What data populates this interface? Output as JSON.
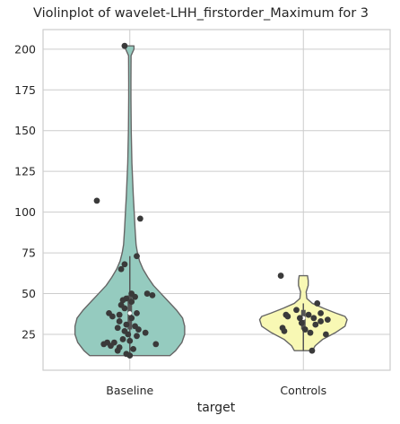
{
  "chart_data": {
    "type": "violin",
    "title": "Violinplot of wavelet-LHH_firstorder_Maximum for 3",
    "xlabel": "target",
    "ylabel": "",
    "categories": [
      "Baseline",
      "Controls"
    ],
    "ylim": [
      3,
      212
    ],
    "yticks": [
      25,
      50,
      75,
      100,
      125,
      150,
      175,
      200
    ],
    "ytick_labels": [
      "25",
      "50",
      "75",
      "100",
      "125",
      "150",
      "175",
      "200"
    ],
    "grid": true,
    "colors": {
      "Baseline": "#95cbbf",
      "Controls": "#f8f8b4",
      "outline": "#666666",
      "points": "#3a3a3a",
      "inner": "#555555"
    },
    "violins": [
      {
        "category": "Baseline",
        "min": 12,
        "max": 202,
        "q1": 28,
        "median": 38,
        "q3": 49,
        "whisker_low": 12,
        "whisker_high": 73,
        "profile": [
          [
            12,
            0.58
          ],
          [
            15,
            0.66
          ],
          [
            20,
            0.75
          ],
          [
            25,
            0.79
          ],
          [
            30,
            0.79
          ],
          [
            35,
            0.76
          ],
          [
            40,
            0.67
          ],
          [
            45,
            0.56
          ],
          [
            50,
            0.45
          ],
          [
            55,
            0.34
          ],
          [
            60,
            0.26
          ],
          [
            65,
            0.19
          ],
          [
            70,
            0.14
          ],
          [
            75,
            0.11
          ],
          [
            80,
            0.09
          ],
          [
            90,
            0.075
          ],
          [
            100,
            0.063
          ],
          [
            110,
            0.05
          ],
          [
            120,
            0.04
          ],
          [
            130,
            0.03
          ],
          [
            140,
            0.025
          ],
          [
            150,
            0.02
          ],
          [
            160,
            0.018
          ],
          [
            170,
            0.016
          ],
          [
            180,
            0.016
          ],
          [
            190,
            0.017
          ],
          [
            196,
            0.018
          ],
          [
            200,
            0.06
          ],
          [
            202,
            0.06
          ]
        ],
        "points": [
          [
            -0.03,
            202
          ],
          [
            -0.19,
            107
          ],
          [
            0.06,
            96
          ],
          [
            0.04,
            73
          ],
          [
            -0.03,
            68
          ],
          [
            -0.05,
            65
          ],
          [
            0.01,
            50
          ],
          [
            0.1,
            50
          ],
          [
            0.13,
            49
          ],
          [
            0.03,
            48
          ],
          [
            -0.02,
            47
          ],
          [
            -0.04,
            46
          ],
          [
            0.01,
            45
          ],
          [
            -0.05,
            43
          ],
          [
            -0.03,
            41
          ],
          [
            -0.12,
            38
          ],
          [
            0.04,
            38
          ],
          [
            -0.06,
            37
          ],
          [
            -0.1,
            36
          ],
          [
            0.01,
            35
          ],
          [
            -0.06,
            33
          ],
          [
            -0.02,
            31
          ],
          [
            0.03,
            30
          ],
          [
            -0.07,
            29
          ],
          [
            0.05,
            28
          ],
          [
            -0.03,
            27
          ],
          [
            0.09,
            26
          ],
          [
            -0.01,
            25
          ],
          [
            0.04,
            24
          ],
          [
            -0.04,
            22
          ],
          [
            0.0,
            21
          ],
          [
            -0.13,
            20
          ],
          [
            -0.09,
            20
          ],
          [
            -0.15,
            19
          ],
          [
            0.15,
            19
          ],
          [
            -0.11,
            18
          ],
          [
            -0.06,
            17
          ],
          [
            0.02,
            16
          ],
          [
            -0.07,
            15
          ],
          [
            -0.02,
            13
          ],
          [
            0.0,
            12
          ]
        ]
      },
      {
        "category": "Controls",
        "min": 15,
        "max": 61,
        "q1": 28,
        "median": 35,
        "q3": 40,
        "whisker_low": 15,
        "whisker_high": 44,
        "profile": [
          [
            15,
            0.13
          ],
          [
            18,
            0.17
          ],
          [
            22,
            0.28
          ],
          [
            26,
            0.46
          ],
          [
            30,
            0.6
          ],
          [
            34,
            0.63
          ],
          [
            36,
            0.6
          ],
          [
            38,
            0.47
          ],
          [
            41,
            0.29
          ],
          [
            44,
            0.13
          ],
          [
            47,
            0.05
          ],
          [
            51,
            0.04
          ],
          [
            55,
            0.07
          ],
          [
            58,
            0.07
          ],
          [
            61,
            0.06
          ]
        ],
        "points": [
          [
            -0.13,
            61
          ],
          [
            0.08,
            44
          ],
          [
            -0.04,
            40
          ],
          [
            0.1,
            38
          ],
          [
            -0.1,
            37
          ],
          [
            0.03,
            37
          ],
          [
            -0.09,
            36
          ],
          [
            -0.02,
            35
          ],
          [
            0.06,
            35
          ],
          [
            0.14,
            34
          ],
          [
            0.1,
            33
          ],
          [
            -0.01,
            32
          ],
          [
            0.07,
            31
          ],
          [
            -0.12,
            29
          ],
          [
            0.01,
            28
          ],
          [
            -0.11,
            27
          ],
          [
            0.04,
            26
          ],
          [
            0.13,
            25
          ],
          [
            0.05,
            15
          ]
        ]
      }
    ]
  }
}
